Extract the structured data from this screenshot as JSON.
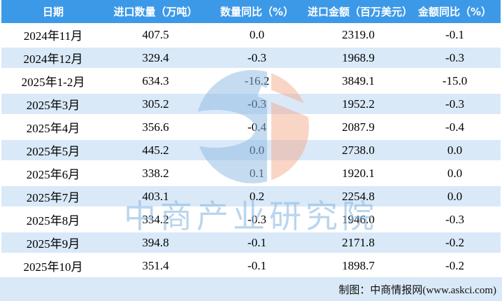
{
  "chart_data": {
    "type": "table",
    "columns": [
      "日期",
      "进口数量（万吨）",
      "数量同比（%）",
      "进口金额（百万美元）",
      "金额同比（%）"
    ],
    "rows": [
      [
        "2024年11月",
        "407.5",
        "0.0",
        "2319.0",
        "-0.1"
      ],
      [
        "2024年12月",
        "329.4",
        "-0.3",
        "1968.9",
        "-0.3"
      ],
      [
        "2025年1-2月",
        "634.3",
        "-16.2",
        "3849.1",
        "-15.0"
      ],
      [
        "2025年3月",
        "305.2",
        "-0.3",
        "1952.2",
        "-0.3"
      ],
      [
        "2025年4月",
        "356.6",
        "-0.4",
        "2087.9",
        "-0.4"
      ],
      [
        "2025年5月",
        "445.2",
        "0.0",
        "2738.0",
        "0.0"
      ],
      [
        "2025年6月",
        "338.2",
        "0.1",
        "1920.1",
        "0.0"
      ],
      [
        "2025年7月",
        "403.1",
        "0.2",
        "2254.8",
        "0.0"
      ],
      [
        "2025年8月",
        "334.2",
        "-0.3",
        "1946.0",
        "-0.3"
      ],
      [
        "2025年9月",
        "394.8",
        "-0.1",
        "2171.8",
        "-0.2"
      ],
      [
        "2025年10月",
        "351.4",
        "-0.1",
        "1898.7",
        "-0.2"
      ]
    ],
    "layout_hints": {
      "striped": true,
      "header_position": "top",
      "footer_band": true
    }
  },
  "watermark": {
    "text": "中商产业研究院",
    "logo_icon": "askci-logo-icon"
  },
  "footer": {
    "credit": "制图：中商情报网(www.askci.com)"
  },
  "colors": {
    "header_bg": "#3C99E8",
    "header_text": "#FFFFFF",
    "stripe_bg": "#D9E9F8",
    "footer_bg": "#D9E9F8",
    "body_text": "#000000",
    "watermark_text": "#8FBCE3",
    "logo_blue": "#8FBCE3",
    "logo_red": "#F2A888"
  }
}
